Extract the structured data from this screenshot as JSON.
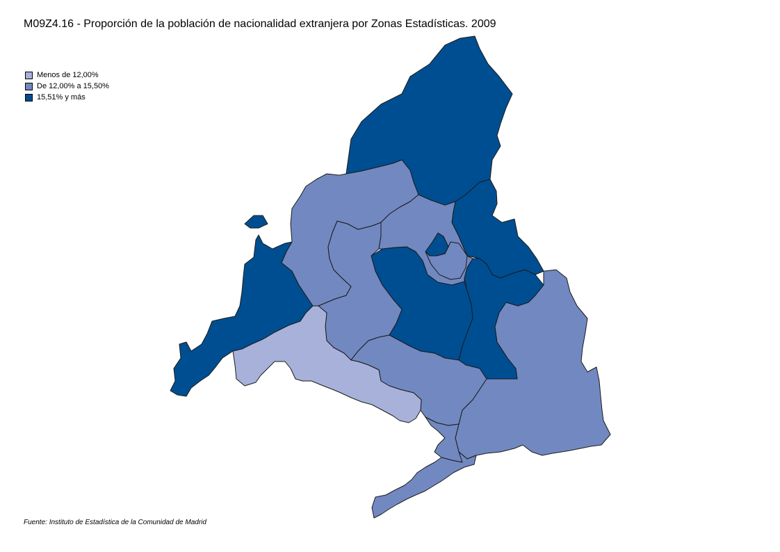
{
  "title": "M09Z4.16 - Proporción de la población de nacionalidad extranjera por Zonas Estadísticas. 2009",
  "legend": {
    "items": [
      {
        "label": "Menos de 12,00%",
        "color": "#a7b1d9"
      },
      {
        "label": "De 12,00% a 15,50%",
        "color": "#7288c0"
      },
      {
        "label": "15,51% y más",
        "color": "#004e92"
      }
    ]
  },
  "zones": [
    {
      "name": "zone-sierra-norte",
      "class": 2
    },
    {
      "name": "zone-nordeste",
      "class": 2
    },
    {
      "name": "zone-este",
      "class": 2
    },
    {
      "name": "zone-madrid-capital",
      "class": 2
    },
    {
      "name": "zone-madrid-exclave",
      "class": 2
    },
    {
      "name": "zone-sierra-oeste",
      "class": 2
    },
    {
      "name": "zone-sur-este",
      "class": 1
    },
    {
      "name": "zone-sierra-central",
      "class": 1
    },
    {
      "name": "zone-cuenca-guadarrama",
      "class": 1
    },
    {
      "name": "zone-norte-metropolitano",
      "class": 1
    },
    {
      "name": "zone-oeste-metropolitano",
      "class": 1
    },
    {
      "name": "zone-sur-metropolitano",
      "class": 1
    },
    {
      "name": "zone-sur-oeste",
      "class": 0
    },
    {
      "name": "zone-sur",
      "class": 1
    },
    {
      "name": "zone-aranjuez",
      "class": 1
    }
  ],
  "source": "Fuente: Instituto de Estadística de la Comunidad de Madrid"
}
